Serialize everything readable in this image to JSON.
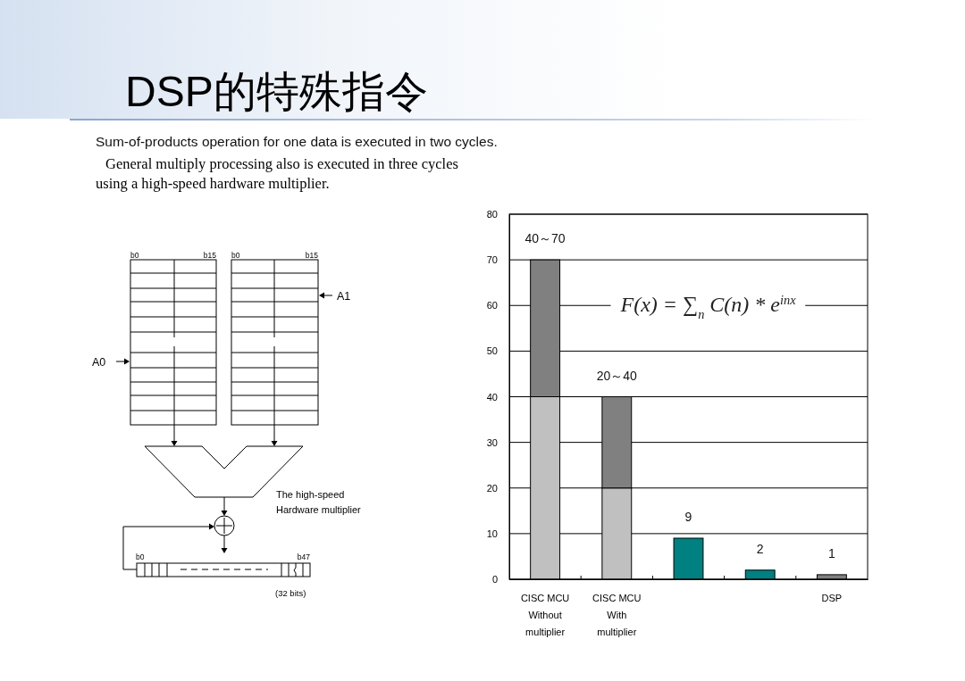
{
  "chart_data": [
    {
      "type": "other",
      "title": "DSP的特殊指令",
      "subtitle": "Sum-of-products operation for one data is executed in two cycles.",
      "annotations": [
        "General multiply processing also is executed in three cycles\nusing a high-speed hardware multiplier.",
        "b0",
        "b15",
        "b0",
        "b15",
        "A1",
        "A0",
        "The high-speed\nHardware multiplier",
        "b0",
        "b47",
        "(32 bits)"
      ]
    },
    {
      "type": "bar",
      "categories": [
        "CISC MCU\nWithout\nmultiplier",
        "CISC MCU\nWith\nmultiplier",
        null,
        null,
        "DSP"
      ],
      "stacked": true,
      "series": [
        {
          "colors": [
            "#c0c0c0",
            "#c0c0c0",
            "#008080",
            "#008080",
            "#808080"
          ],
          "values": [
            40,
            20,
            9,
            2,
            1
          ]
        },
        {
          "color": "#808080",
          "values": [
            30,
            20,
            null,
            null,
            null
          ]
        }
      ],
      "totals": [
        "40～70",
        "20～40",
        "9",
        "2",
        "1"
      ],
      "ylim": [
        0,
        80
      ],
      "yticks": [
        0,
        10,
        20,
        30,
        40,
        50,
        60,
        70,
        80
      ],
      "grid": "y",
      "annotations": [
        "F(x) = ∑$_{n}$ C(n) * e$^{inx}$"
      ]
    }
  ]
}
